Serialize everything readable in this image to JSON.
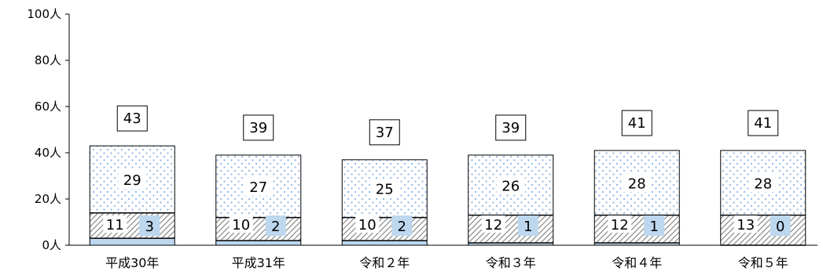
{
  "chart_data": {
    "type": "bar",
    "stacked": true,
    "categories": [
      "平成30年",
      "平成31年",
      "令和２年",
      "令和３年",
      "令和４年",
      "令和５年"
    ],
    "series": [
      {
        "values": [
          3,
          2,
          2,
          1,
          1,
          0
        ],
        "color": "#bdd7ee",
        "pattern": "solid"
      },
      {
        "values": [
          11,
          10,
          10,
          12,
          12,
          13
        ],
        "color": "#7f7f7f",
        "pattern": "diagonal-hatch"
      },
      {
        "values": [
          29,
          27,
          25,
          26,
          28,
          28
        ],
        "color": "#8eb4e3",
        "pattern": "dots"
      }
    ],
    "totals": [
      43,
      39,
      37,
      39,
      41,
      41
    ],
    "y_ticks": [
      "0人",
      "20人",
      "40人",
      "60人",
      "80人",
      "100人"
    ],
    "ylim": [
      0,
      100
    ],
    "y_tick_values": [
      0,
      20,
      40,
      60,
      80,
      100
    ],
    "grid": false,
    "legend": "none",
    "title": "",
    "xlabel": "",
    "ylabel": ""
  }
}
